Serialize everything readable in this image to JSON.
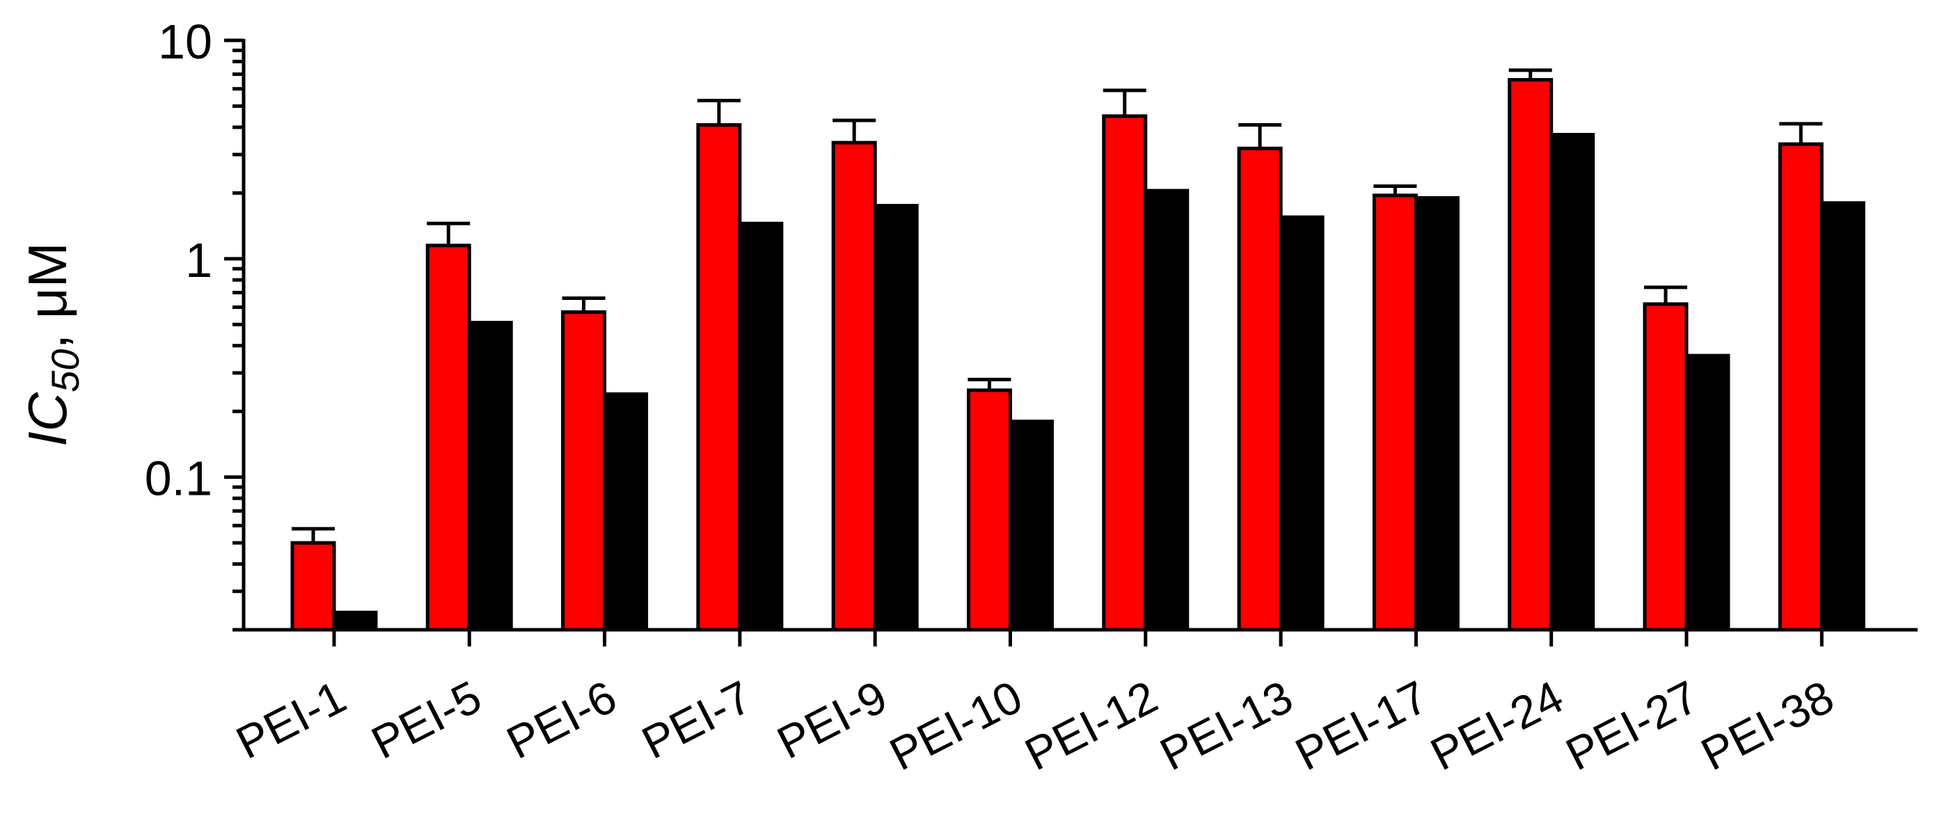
{
  "chart_data": {
    "type": "bar",
    "ylabel_main": "IC",
    "ylabel_sub": "50",
    "ylabel_unit": ", μM",
    "yscale": "log",
    "ylim": [
      0.02,
      10
    ],
    "yticks": [
      {
        "value": 0.1,
        "label": "0.1"
      },
      {
        "value": 1,
        "label": "1"
      },
      {
        "value": 10,
        "label": "10"
      }
    ],
    "categories": [
      "PEI-1",
      "PEI-5",
      "PEI-6",
      "PEI-7",
      "PEI-9",
      "PEI-10",
      "PEI-12",
      "PEI-13",
      "PEI-17",
      "PEI-24",
      "PEI-27",
      "PEI-38"
    ],
    "series": [
      {
        "color": "#ff0000",
        "values": [
          0.05,
          1.15,
          0.57,
          4.1,
          3.4,
          0.25,
          4.5,
          3.2,
          1.95,
          6.6,
          0.62,
          3.35
        ],
        "error_upper": [
          0.058,
          1.45,
          0.66,
          5.3,
          4.3,
          0.28,
          5.9,
          4.1,
          2.15,
          7.3,
          0.74,
          4.15
        ]
      },
      {
        "color": "#000000",
        "values": [
          0.024,
          0.51,
          0.24,
          1.45,
          1.75,
          0.18,
          2.05,
          1.55,
          1.9,
          3.7,
          0.36,
          1.8
        ]
      }
    ]
  }
}
